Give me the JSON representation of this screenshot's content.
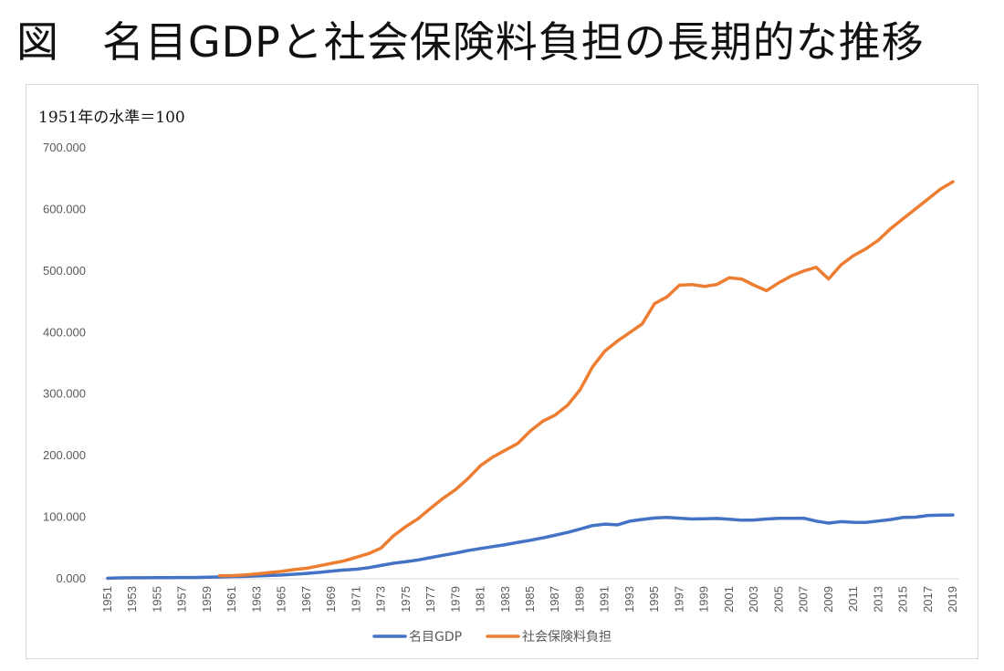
{
  "chart_data": {
    "type": "line",
    "title": "図　名目GDPと社会保険料負担の長期的な推移",
    "unit_label": "1951年の水準＝100",
    "ylim": [
      0,
      700
    ],
    "y_ticks": [
      "0.000",
      "100.000",
      "200.000",
      "300.000",
      "400.000",
      "500.000",
      "600.000",
      "700.000"
    ],
    "x_tick_labels": [
      "1951",
      "1953",
      "1955",
      "1957",
      "1959",
      "1961",
      "1963",
      "1965",
      "1967",
      "1969",
      "1971",
      "1973",
      "1975",
      "1977",
      "1979",
      "1981",
      "1983",
      "1985",
      "1987",
      "1989",
      "1991",
      "1993",
      "1995",
      "1997",
      "1999",
      "2001",
      "2003",
      "2005",
      "2007",
      "2009",
      "2011",
      "2013",
      "2015",
      "2017",
      "2019"
    ],
    "x_start": 1951,
    "x_end": 2019,
    "legend_position": "bottom",
    "series": [
      {
        "name": "名目GDP",
        "color": "#4472C4",
        "x_start": 1951,
        "values": [
          1,
          1.5,
          1.6,
          1.7,
          1.8,
          1.9,
          2,
          2.1,
          2.6,
          3,
          3.5,
          3.9,
          4.6,
          5.4,
          6.1,
          7.4,
          8.8,
          10.3,
          12.4,
          14.2,
          15.5,
          18.1,
          21.7,
          25.3,
          27.8,
          30.7,
          34.5,
          38.3,
          41.8,
          45.9,
          49.2,
          52.4,
          55.4,
          59.1,
          62.6,
          66.5,
          70.8,
          75.4,
          80.8,
          86.4,
          88.8,
          87.6,
          93.6,
          96.4,
          98.8,
          99.8,
          98.5,
          97.2,
          97.6,
          98.1,
          96.7,
          95.2,
          95.4,
          97.1,
          98.2,
          98.3,
          98.4,
          93.7,
          90.5,
          92.8,
          91.7,
          91.5,
          93.9,
          96.2,
          99.7,
          100.1,
          102.9,
          103.4,
          103.6
        ]
      },
      {
        "name": "社会保険料負担",
        "color": "#ED7D31",
        "x_start": 1960,
        "values": [
          5,
          5.2,
          6.2,
          8,
          10,
          12,
          15,
          17,
          21,
          25,
          29,
          35,
          41,
          50,
          70,
          85,
          98,
          115,
          131,
          145,
          163,
          184,
          198,
          209,
          220,
          240,
          256,
          266,
          282,
          307,
          344,
          370,
          386,
          400,
          414,
          447,
          458,
          477,
          478,
          475,
          478,
          489,
          487,
          477,
          468,
          481,
          492,
          500,
          506,
          487,
          510,
          525,
          536,
          550,
          569,
          585,
          601,
          617,
          633,
          645
        ]
      }
    ]
  }
}
